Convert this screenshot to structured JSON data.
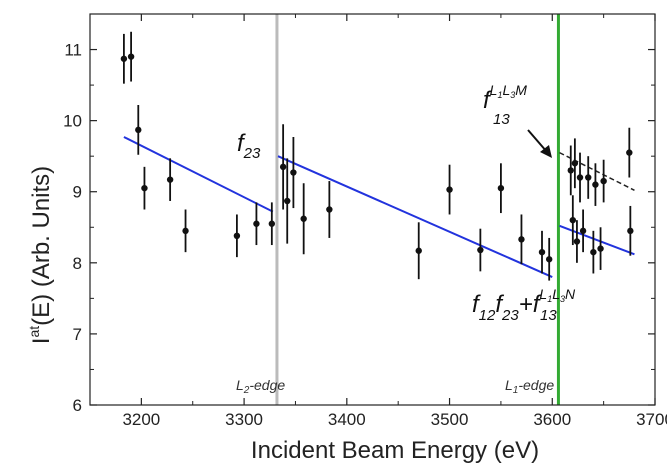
{
  "chart_data": {
    "type": "scatter",
    "xlabel": "Incident Beam Energy (eV)",
    "ylabel": {
      "main": "I",
      "sup": "at",
      "rest": "(E) (Arb. Units)"
    },
    "xlim": [
      3150,
      3700
    ],
    "ylim": [
      6,
      11.5
    ],
    "x_ticks": [
      3200,
      3300,
      3400,
      3500,
      3600,
      3700
    ],
    "y_ticks": [
      6,
      7,
      8,
      9,
      10,
      11
    ],
    "grid": false,
    "colors": {
      "points": "#111111",
      "fit": "#2233dd",
      "edge_L2": "#bbbbbb",
      "edge_L1": "#33aa33",
      "extrapolation": "#222222"
    },
    "points": [
      {
        "x": 3183,
        "y": 10.87,
        "err": 0.35
      },
      {
        "x": 3190,
        "y": 10.9,
        "err": 0.35
      },
      {
        "x": 3197,
        "y": 9.87,
        "err": 0.35
      },
      {
        "x": 3203,
        "y": 9.05,
        "err": 0.3
      },
      {
        "x": 3228,
        "y": 9.17,
        "err": 0.3
      },
      {
        "x": 3243,
        "y": 8.45,
        "err": 0.3
      },
      {
        "x": 3293,
        "y": 8.38,
        "err": 0.3
      },
      {
        "x": 3312,
        "y": 8.55,
        "err": 0.3
      },
      {
        "x": 3327,
        "y": 8.55,
        "err": 0.3
      },
      {
        "x": 3338,
        "y": 9.35,
        "err": 0.6
      },
      {
        "x": 3342,
        "y": 8.87,
        "err": 0.6
      },
      {
        "x": 3348,
        "y": 9.27,
        "err": 0.5
      },
      {
        "x": 3358,
        "y": 8.62,
        "err": 0.5
      },
      {
        "x": 3383,
        "y": 8.75,
        "err": 0.4
      },
      {
        "x": 3470,
        "y": 8.17,
        "err": 0.4
      },
      {
        "x": 3500,
        "y": 9.03,
        "err": 0.35
      },
      {
        "x": 3530,
        "y": 8.18,
        "err": 0.3
      },
      {
        "x": 3550,
        "y": 9.05,
        "err": 0.35
      },
      {
        "x": 3570,
        "y": 8.33,
        "err": 0.35
      },
      {
        "x": 3590,
        "y": 8.15,
        "err": 0.3
      },
      {
        "x": 3597,
        "y": 8.05,
        "err": 0.3
      },
      {
        "x": 3618,
        "y": 9.3,
        "err": 0.35
      },
      {
        "x": 3620,
        "y": 8.6,
        "err": 0.35
      },
      {
        "x": 3622,
        "y": 9.4,
        "err": 0.35
      },
      {
        "x": 3624,
        "y": 8.3,
        "err": 0.3
      },
      {
        "x": 3627,
        "y": 9.2,
        "err": 0.35
      },
      {
        "x": 3630,
        "y": 8.45,
        "err": 0.3
      },
      {
        "x": 3635,
        "y": 9.2,
        "err": 0.3
      },
      {
        "x": 3640,
        "y": 8.15,
        "err": 0.3
      },
      {
        "x": 3642,
        "y": 9.1,
        "err": 0.3
      },
      {
        "x": 3647,
        "y": 8.2,
        "err": 0.3
      },
      {
        "x": 3650,
        "y": 9.15,
        "err": 0.3
      },
      {
        "x": 3675,
        "y": 9.55,
        "err": 0.35
      },
      {
        "x": 3676,
        "y": 8.45,
        "err": 0.35
      }
    ],
    "fit_lines": [
      {
        "x": [
          3183,
          3328
        ],
        "y": [
          9.77,
          8.72
        ]
      },
      {
        "x": [
          3333,
          3600
        ],
        "y": [
          9.5,
          7.8
        ]
      },
      {
        "x": [
          3607,
          3680
        ],
        "y": [
          8.52,
          8.12
        ]
      }
    ],
    "dashed_line": {
      "x": [
        3607,
        3680
      ],
      "y": [
        9.55,
        9.02
      ]
    },
    "vertical_lines": [
      {
        "x": 3332,
        "label_base": "L",
        "label_sub": "2",
        "label_rest": "-edge"
      },
      {
        "x": 3606,
        "label_base": "L",
        "label_sub": "1",
        "label_rest": "-edge"
      }
    ],
    "annotations": {
      "f23": {
        "base": "f",
        "sub": "23"
      },
      "f13_L1L3M": {
        "base": "f",
        "sub": "13",
        "sup_a": "L",
        "sup_a_sub": "1",
        "sup_b": "L",
        "sup_b_sub": "3",
        "sup_c": "M"
      },
      "bottom_label": {
        "t1": "f",
        "t1sub": "12",
        "t2": "f",
        "t2sub": "23",
        "plus": "+",
        "t3": "f",
        "t3sub": "13",
        "sup_a": "L",
        "sup_a_sub": "1",
        "sup_b": "L",
        "sup_b_sub": "3",
        "sup_c": "N"
      }
    }
  }
}
